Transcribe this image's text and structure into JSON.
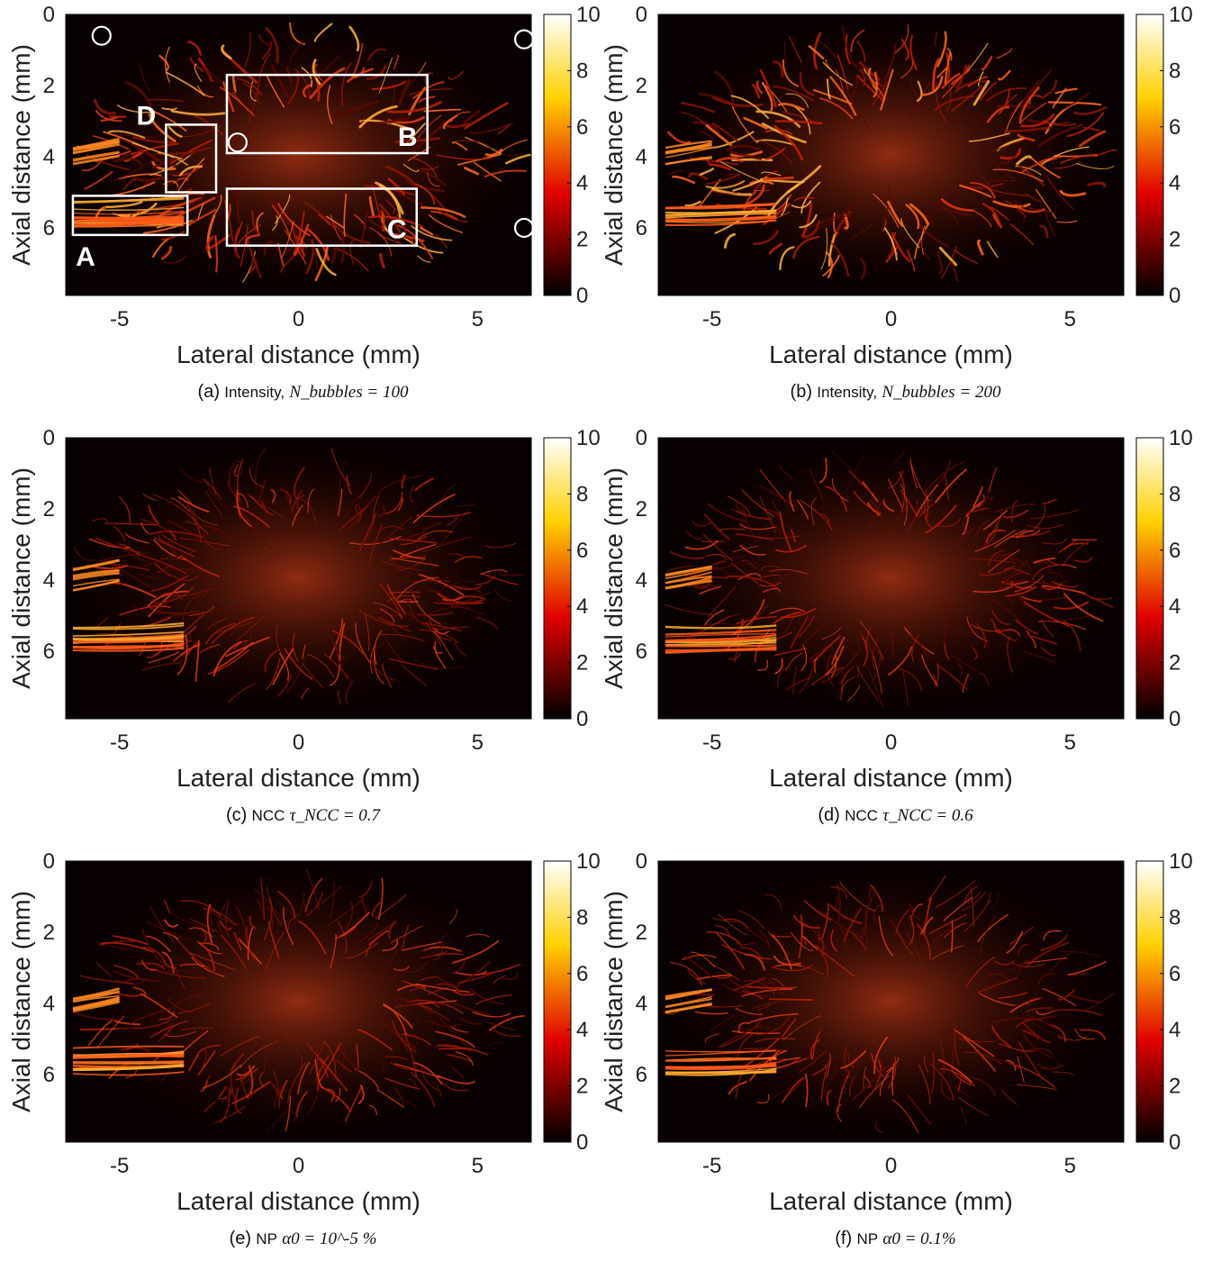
{
  "chart_data": [
    {
      "type": "heatmap",
      "panel": "a",
      "caption_label": "(a)",
      "caption_text": "Intensity,",
      "caption_math": "N_bubbles = 100",
      "xlabel": "Lateral distance (mm)",
      "ylabel": "Axial distance (mm)",
      "xlim": [
        -6.5,
        6.5
      ],
      "ylim": [
        0,
        7.9
      ],
      "xticks": [
        "-5",
        "0",
        "5"
      ],
      "yticks": [
        "0",
        "2",
        "4",
        "6"
      ],
      "colorbar_range": [
        0,
        10
      ],
      "colorbar_ticks": [
        "0",
        "2",
        "4",
        "6",
        "8",
        "10"
      ],
      "colormap": "hot",
      "annotations": {
        "boxes": [
          {
            "label": "A",
            "x0": -6.3,
            "x1": -3.1,
            "y0": 5.1,
            "y1": 6.2
          },
          {
            "label": "B",
            "x0": -2.0,
            "x1": 3.6,
            "y0": 1.7,
            "y1": 3.9
          },
          {
            "label": "C",
            "x0": -2.0,
            "x1": 3.3,
            "y0": 4.9,
            "y1": 6.5
          },
          {
            "label": "D",
            "x0": -3.7,
            "x1": -2.3,
            "y0": 3.1,
            "y1": 5.0
          }
        ],
        "circles": [
          {
            "x": -5.5,
            "y": 0.6
          },
          {
            "x": 6.3,
            "y": 0.7
          },
          {
            "x": -1.7,
            "y": 3.6
          },
          {
            "x": 6.3,
            "y": 6.0
          }
        ]
      }
    },
    {
      "type": "heatmap",
      "panel": "b",
      "caption_label": "(b)",
      "caption_text": "Intensity,",
      "caption_math": "N_bubbles = 200",
      "xlabel": "Lateral distance (mm)",
      "ylabel": "Axial distance (mm)",
      "xlim": [
        -6.5,
        6.5
      ],
      "ylim": [
        0,
        7.9
      ],
      "xticks": [
        "-5",
        "0",
        "5"
      ],
      "yticks": [
        "0",
        "2",
        "4",
        "6"
      ],
      "colorbar_range": [
        0,
        10
      ],
      "colorbar_ticks": [
        "0",
        "2",
        "4",
        "6",
        "8",
        "10"
      ],
      "colormap": "hot"
    },
    {
      "type": "heatmap",
      "panel": "c",
      "caption_label": "(c)",
      "caption_text": "NCC",
      "caption_math": "τ_NCC = 0.7",
      "xlabel": "Lateral distance (mm)",
      "ylabel": "Axial distance (mm)",
      "xlim": [
        -6.5,
        6.5
      ],
      "ylim": [
        0,
        7.9
      ],
      "xticks": [
        "-5",
        "0",
        "5"
      ],
      "yticks": [
        "0",
        "2",
        "4",
        "6"
      ],
      "colorbar_range": [
        0,
        10
      ],
      "colorbar_ticks": [
        "0",
        "2",
        "4",
        "6",
        "8",
        "10"
      ],
      "colormap": "hot"
    },
    {
      "type": "heatmap",
      "panel": "d",
      "caption_label": "(d)",
      "caption_text": "NCC",
      "caption_math": "τ_NCC = 0.6",
      "xlabel": "Lateral distance (mm)",
      "ylabel": "Axial distance (mm)",
      "xlim": [
        -6.5,
        6.5
      ],
      "ylim": [
        0,
        7.9
      ],
      "xticks": [
        "-5",
        "0",
        "5"
      ],
      "yticks": [
        "0",
        "2",
        "4",
        "6"
      ],
      "colorbar_range": [
        0,
        10
      ],
      "colorbar_ticks": [
        "0",
        "2",
        "4",
        "6",
        "8",
        "10"
      ],
      "colormap": "hot"
    },
    {
      "type": "heatmap",
      "panel": "e",
      "caption_label": "(e)",
      "caption_text": "NP",
      "caption_math": "α0 = 10^-5 %",
      "xlabel": "Lateral distance (mm)",
      "ylabel": "Axial distance (mm)",
      "xlim": [
        -6.5,
        6.5
      ],
      "ylim": [
        0,
        7.9
      ],
      "xticks": [
        "-5",
        "0",
        "5"
      ],
      "yticks": [
        "0",
        "2",
        "4",
        "6"
      ],
      "colorbar_range": [
        0,
        10
      ],
      "colorbar_ticks": [
        "0",
        "2",
        "4",
        "6",
        "8",
        "10"
      ],
      "colormap": "hot"
    },
    {
      "type": "heatmap",
      "panel": "f",
      "caption_label": "(f)",
      "caption_text": "NP",
      "caption_math": "α0 = 0.1%",
      "xlabel": "Lateral distance (mm)",
      "ylabel": "Axial distance (mm)",
      "xlim": [
        -6.5,
        6.5
      ],
      "ylim": [
        0,
        7.9
      ],
      "xticks": [
        "-5",
        "0",
        "5"
      ],
      "yticks": [
        "0",
        "2",
        "4",
        "6"
      ],
      "colorbar_range": [
        0,
        10
      ],
      "colorbar_ticks": [
        "0",
        "2",
        "4",
        "6",
        "8",
        "10"
      ],
      "colormap": "hot"
    }
  ]
}
